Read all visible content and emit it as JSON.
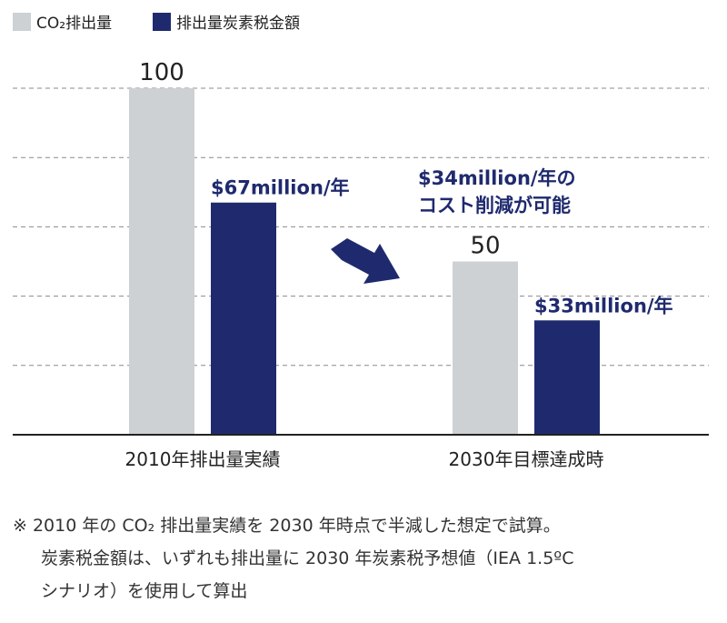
{
  "chart_data": {
    "type": "bar",
    "categories": [
      "2010年排出量実績",
      "2030年目標達成時"
    ],
    "series": [
      {
        "name": "CO₂排出量",
        "values": [
          100,
          50
        ],
        "labels": [
          "100",
          "50"
        ],
        "color": "#cdd1d3"
      },
      {
        "name": "排出量炭素税金額",
        "values": [
          67,
          33
        ],
        "labels": [
          "$67million/年",
          "$33million/年"
        ],
        "color": "#1f2a6e"
      }
    ],
    "ylim": [
      0,
      125
    ],
    "grid": true,
    "legend_position": "top-left",
    "annotation": {
      "lines": [
        "$34million/年の",
        "コスト削減が可能"
      ],
      "arrow_color": "#1f2a6e"
    }
  },
  "notes": {
    "line1": "※ 2010 年の CO₂ 排出量実績を 2030 年時点で半減した想定で試算。",
    "line2": "炭素税金額は、いずれも排出量に 2030 年炭素税予想値（IEA 1.5ºC",
    "line3": "シナリオ）を使用して算出"
  }
}
